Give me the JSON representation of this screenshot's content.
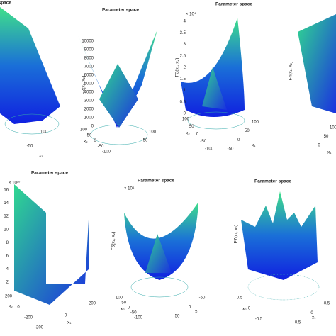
{
  "panels": [
    {
      "title": "Parameter space",
      "xticks": [
        "100",
        "-50"
      ],
      "xlabel": "x₁"
    },
    {
      "title": "Parameter space",
      "zlabel": "F2(x₁, x₂)",
      "zticks": [
        "10000",
        "9000",
        "8000",
        "7000",
        "6000",
        "5000",
        "4000",
        "3000",
        "2000",
        "1000",
        "0"
      ],
      "yticks": [
        "100",
        "50",
        "0",
        "-50",
        "-100"
      ],
      "ylabel": "x₂",
      "xticks": [
        "100",
        "50"
      ]
    },
    {
      "title": "Parameter space",
      "exponent": "× 10⁴",
      "zlabel": "F3(x₁, x₂)",
      "zticks": [
        "4",
        "3.5",
        "3",
        "2.5",
        "2",
        "1.5",
        "1",
        "0.5",
        "0"
      ],
      "yticks": [
        "100",
        "50",
        "0",
        "-50",
        "-100"
      ],
      "ylabel": "x₂",
      "xticks": [
        "100",
        "50",
        "0",
        "-50"
      ],
      "xlabel": "x₁"
    },
    {
      "zlabel": "F4(x₁, x₂)",
      "xticks": [
        "100",
        "50",
        "0"
      ],
      "xlabel": "x₁"
    },
    {
      "title": "Parameter space",
      "exponent": "× 10¹⁰",
      "zticks": [
        "16",
        "14",
        "12",
        "10",
        "8",
        "6",
        "4",
        "2"
      ],
      "yticks": [
        "200",
        "0",
        "-200"
      ],
      "ylabel": "x₂",
      "xticks": [
        "-200",
        "0",
        "200"
      ],
      "xlabel": "x₁"
    },
    {
      "title": "Parameter space",
      "exponent": "× 10⁴",
      "zlabel": "F6(x₁, x₂)",
      "yticks": [
        "100",
        "50",
        "0",
        "-50",
        "-100"
      ],
      "ylabel": "x₂",
      "xticks": [
        "50",
        "0",
        "-50"
      ],
      "xlabel": "x₁"
    },
    {
      "title": "Parameter space",
      "zlabel": "F7(x₁, x₂)",
      "yticks": [
        "0.5",
        "0",
        "-0.5"
      ],
      "ylabel": "x₂",
      "xticks": [
        "0.5",
        "0",
        "-0.5"
      ],
      "xlabel": "x₁"
    }
  ]
}
